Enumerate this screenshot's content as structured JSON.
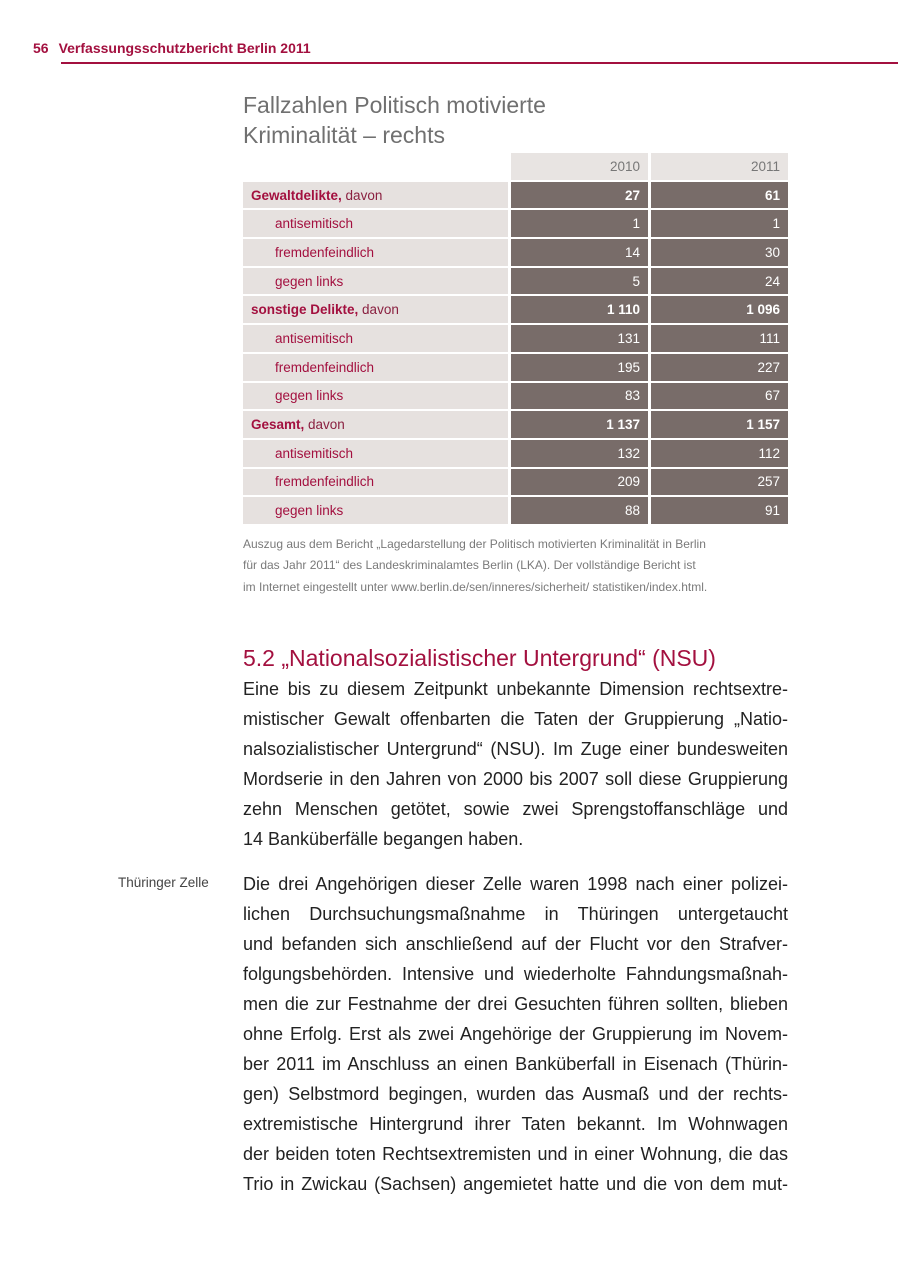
{
  "header": {
    "page_number": "56",
    "title": "Verfassungsschutzbericht Berlin 2011"
  },
  "table": {
    "title_lines": [
      "Fallzahlen Politisch motivierte",
      "Kriminalität – rechts"
    ],
    "years": [
      "2010",
      "2011"
    ],
    "rows": [
      {
        "label": "Gewaltdelikte,",
        "suffix": " davon",
        "main": true,
        "v2010": "27",
        "v2011": "61"
      },
      {
        "label": "antisemitisch",
        "v2010": "1",
        "v2011": "1"
      },
      {
        "label": "fremdenfeindlich",
        "v2010": "14",
        "v2011": "30"
      },
      {
        "label": "gegen links",
        "v2010": "5",
        "v2011": "24"
      },
      {
        "label": "sonstige Delikte,",
        "suffix": " davon",
        "main": true,
        "v2010": "1 110",
        "v2011": "1 096"
      },
      {
        "label": "antisemitisch",
        "v2010": "131",
        "v2011": "111"
      },
      {
        "label": "fremdenfeindlich",
        "v2010": "195",
        "v2011": "227"
      },
      {
        "label": "gegen links",
        "v2010": "83",
        "v2011": "67"
      },
      {
        "label": "Gesamt,",
        "suffix": " davon",
        "main": true,
        "v2010": "1 137",
        "v2011": "1 157"
      },
      {
        "label": "antisemitisch",
        "v2010": "132",
        "v2011": "112"
      },
      {
        "label": "fremdenfeindlich",
        "v2010": "209",
        "v2011": "257"
      },
      {
        "label": "gegen links",
        "v2010": "88",
        "v2011": "91"
      }
    ],
    "note_lines": [
      "Auszug aus dem Bericht „Lagedarstellung der Politisch motivierten Kriminalität in Berlin",
      "für das Jahr 2011“ des Landeskriminalamtes Berlin (LKA). Der vollständige Bericht ist",
      "im Internet eingestellt unter www.berlin.de/sen/inneres/sicherheit/ statistiken/index.html."
    ]
  },
  "section": {
    "heading": "5.2 „Nationalsozialistischer Untergrund“ (NSU)",
    "paragraph1": [
      "Eine bis zu diesem Zeitpunkt unbekannte Dimension rechtsextre-",
      "mistischer Gewalt offenbarten die Taten der Gruppierung „Natio-",
      "nalsozialistischer Untergrund“ (NSU). Im Zuge einer bundesweiten",
      "Mordserie in den Jahren von 2000 bis 2007 soll diese Gruppierung",
      "zehn Menschen getötet, sowie zwei Sprengstoffanschläge und",
      "14 Banküberfälle begangen haben."
    ],
    "margin_label": "Thüringer Zelle",
    "paragraph2": [
      "Die drei Angehörigen dieser Zelle waren 1998 nach einer polizei-",
      "lichen Durchsuchungsmaßnahme in Thüringen untergetaucht",
      "und befanden sich anschließend auf der Flucht vor den Strafver-",
      "folgungsbehörden. Intensive und wiederholte Fahndungsmaßnah-",
      "men die zur Festnahme der drei Gesuchten führen sollten, blieben",
      "ohne Erfolg. Erst als zwei Angehörige der Gruppierung im Novem-",
      "ber 2011 im Anschluss an einen Banküberfall in Eisenach (Thürin-",
      "gen) Selbstmord begingen, wurden das Ausmaß und der rechts-",
      "extremistische Hintergrund ihrer Taten bekannt. Im Wohnwagen",
      "der beiden toten Rechtsextremisten und in einer Wohnung, die das",
      "Trio in Zwickau (Sachsen) angemietet hatte und die von dem mut-"
    ]
  },
  "colors": {
    "accent": "#a3103f",
    "value_cell": "#786c69",
    "label_cell": "#e6e1df"
  }
}
